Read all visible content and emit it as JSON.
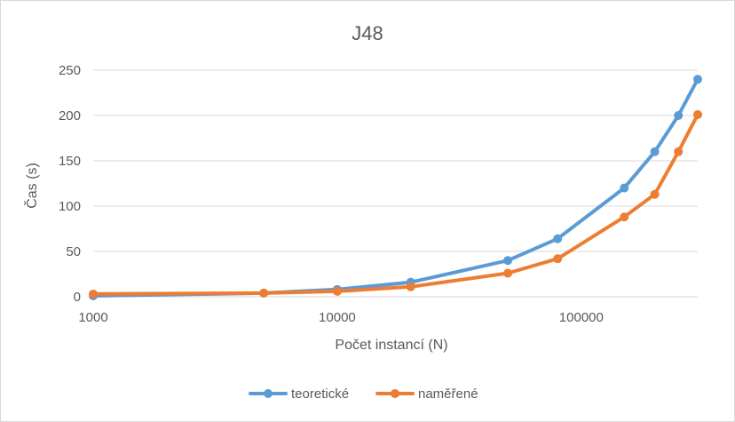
{
  "chart_data": {
    "type": "line",
    "title": "J48",
    "xlabel": "Počet instancí (N)",
    "ylabel": "Čas (s)",
    "x_scale": "log",
    "xlim": [
      1000,
      300000
    ],
    "ylim": [
      0,
      250
    ],
    "x_ticks": [
      "1000",
      "10000",
      "100000"
    ],
    "y_ticks": [
      "0",
      "50",
      "100",
      "150",
      "200",
      "250"
    ],
    "grid": "horizontal",
    "legend_position": "bottom",
    "series": [
      {
        "name": "teoretické",
        "color": "#5b9bd5",
        "x": [
          1000,
          5000,
          10000,
          20000,
          50000,
          80000,
          150000,
          200000,
          250000,
          300000
        ],
        "values": [
          1,
          4,
          8,
          16,
          40,
          64,
          120,
          160,
          200,
          240
        ]
      },
      {
        "name": "naměřené",
        "color": "#ed7d31",
        "x": [
          1000,
          5000,
          10000,
          20000,
          50000,
          80000,
          150000,
          200000,
          250000,
          300000
        ],
        "values": [
          3,
          4,
          6,
          11,
          26,
          42,
          88,
          113,
          160,
          201
        ]
      }
    ]
  }
}
